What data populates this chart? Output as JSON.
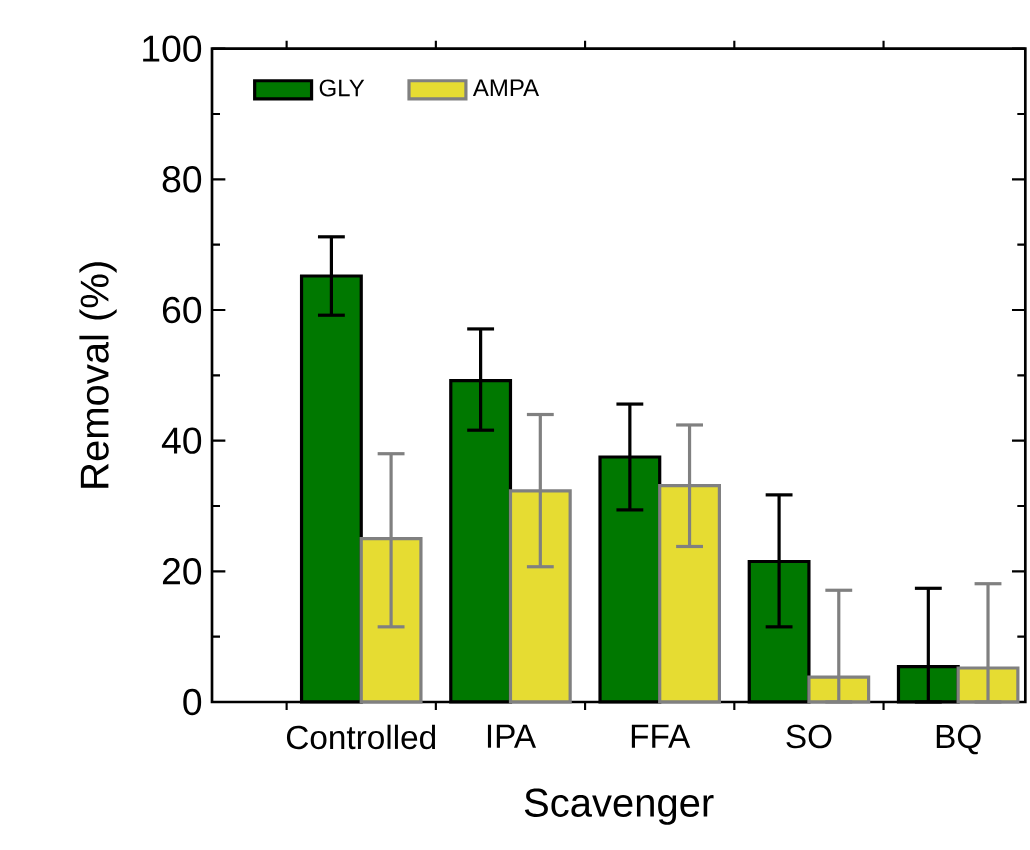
{
  "chart_data": {
    "type": "bar",
    "xlabel": "Scavenger",
    "ylabel": "Removal (%)",
    "categories": [
      "Controlled",
      "IPA",
      "FFA",
      "SO",
      "BQ"
    ],
    "series": [
      {
        "name": "GLY",
        "color": "#007800",
        "values": [
          65.2,
          49.2,
          37.5,
          21.5,
          5.4
        ],
        "errors": [
          [
            59.2,
            71.2
          ],
          [
            41.6,
            57.1
          ],
          [
            29.4,
            45.6
          ],
          [
            11.5,
            31.7
          ],
          [
            0,
            17.4
          ]
        ]
      },
      {
        "name": "AMPA",
        "color": "#e6dc32",
        "values": [
          25.0,
          32.3,
          33.1,
          3.8,
          5.2
        ],
        "errors": [
          [
            11.5,
            38.0
          ],
          [
            20.7,
            44.0
          ],
          [
            23.8,
            42.4
          ],
          [
            0,
            17.1
          ],
          [
            0,
            18.1
          ]
        ]
      }
    ],
    "ylim": [
      0,
      100
    ],
    "yticks": [
      0,
      20,
      40,
      60,
      80,
      100
    ],
    "legend": "top left"
  }
}
